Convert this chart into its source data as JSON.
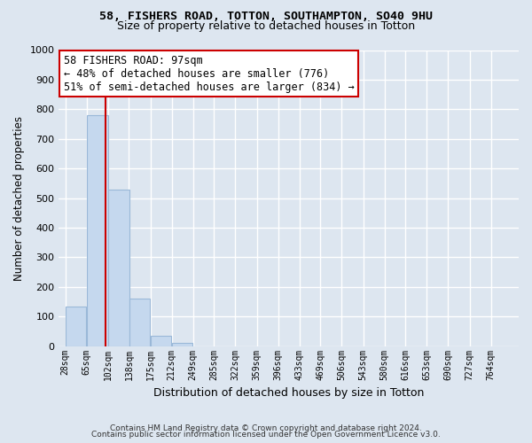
{
  "title1": "58, FISHERS ROAD, TOTTON, SOUTHAMPTON, SO40 9HU",
  "title2": "Size of property relative to detached houses in Totton",
  "xlabel": "Distribution of detached houses by size in Totton",
  "ylabel": "Number of detached properties",
  "footer1": "Contains HM Land Registry data © Crown copyright and database right 2024.",
  "footer2": "Contains public sector information licensed under the Open Government Licence v3.0.",
  "bin_edges": [
    28,
    65,
    102,
    138,
    175,
    212,
    249,
    285,
    322,
    359,
    396,
    433,
    469,
    506,
    543,
    580,
    616,
    653,
    690,
    727,
    764
  ],
  "bar_heights": [
    135,
    780,
    530,
    160,
    35,
    10,
    0,
    0,
    0,
    0,
    0,
    0,
    0,
    0,
    0,
    0,
    0,
    0,
    0,
    0
  ],
  "bar_color": "#c5d8ee",
  "bar_edge_color": "#9ab8d8",
  "vline_x": 97,
  "vline_color": "#cc0000",
  "annotation_line1": "58 FISHERS ROAD: 97sqm",
  "annotation_line2": "← 48% of detached houses are smaller (776)",
  "annotation_line3": "51% of semi-detached houses are larger (834) →",
  "annotation_box_color": "#cc0000",
  "bg_color": "#dde6f0",
  "plot_bg_color": "#dde6f0",
  "grid_color": "#ffffff",
  "ylim": [
    0,
    1000
  ],
  "yticks": [
    0,
    100,
    200,
    300,
    400,
    500,
    600,
    700,
    800,
    900,
    1000
  ],
  "title1_fontsize": 9.5,
  "title2_fontsize": 9.0,
  "ylabel_fontsize": 8.5,
  "xlabel_fontsize": 9.0,
  "annotation_fontsize": 8.5
}
